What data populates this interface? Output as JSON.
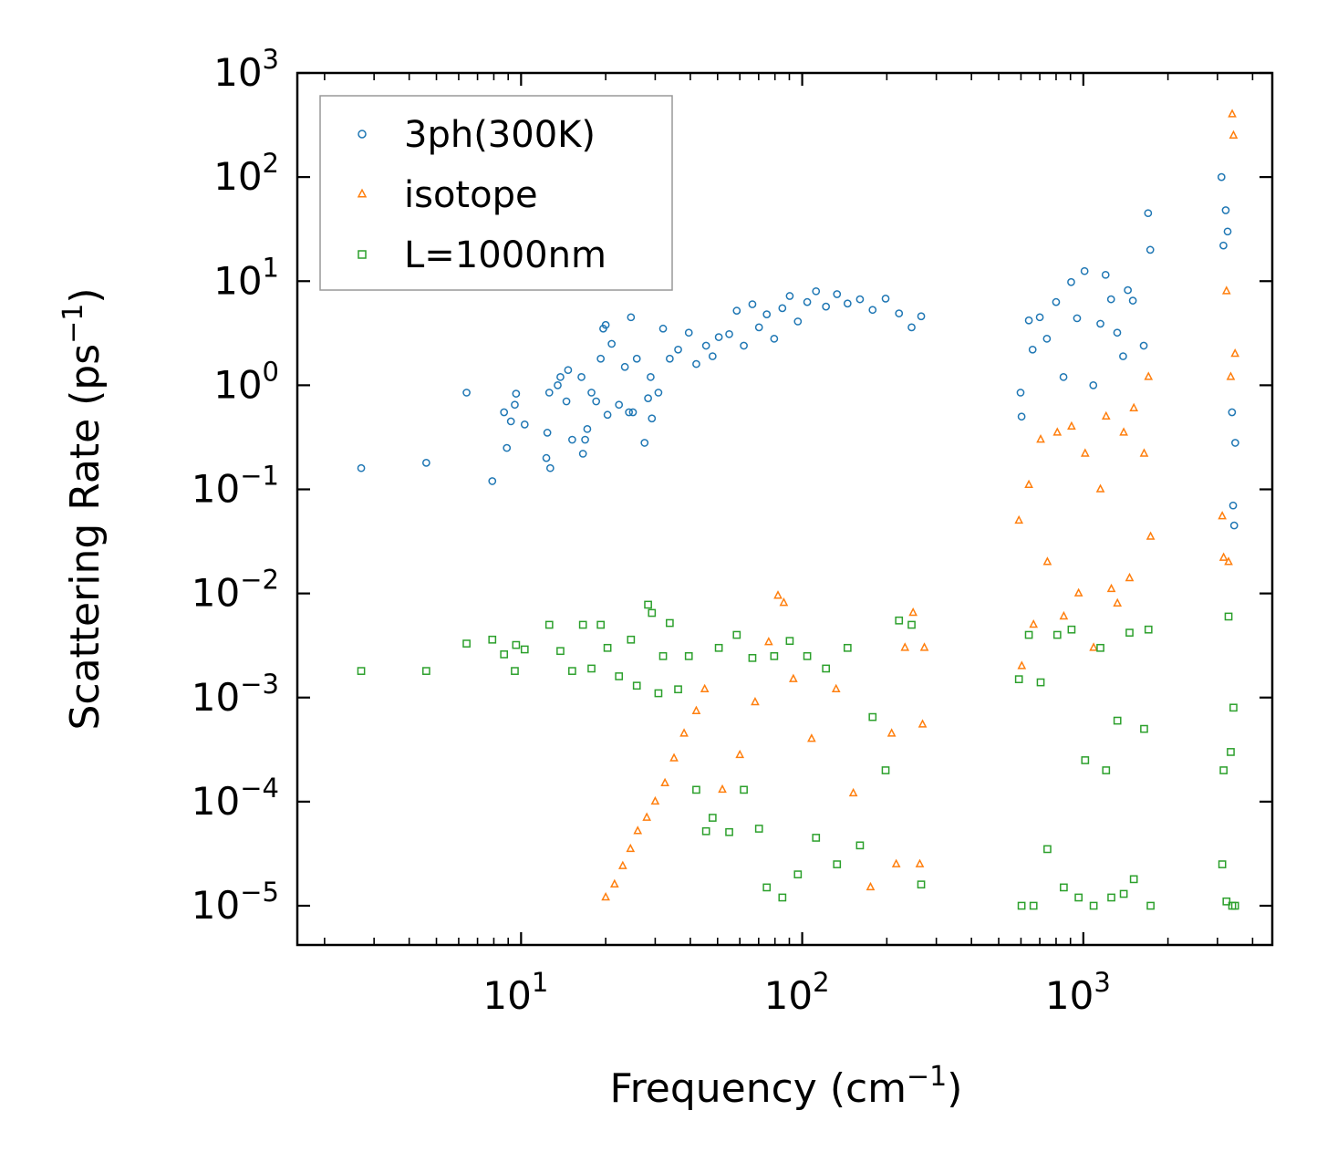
{
  "chart_data": {
    "type": "scatter",
    "title": "",
    "xlabel": "Frequency (cm",
    "xlabel_sup": "−1",
    "xlabel_tail": ")",
    "ylabel": "Scattering Rate (ps",
    "ylabel_sup": "−1",
    "ylabel_tail": ")",
    "xscale": "log",
    "yscale": "log",
    "xlim": [
      1.6,
      4700
    ],
    "ylim": [
      4.2e-06,
      1000
    ],
    "x_ticks": [
      {
        "value": 10,
        "base": "10",
        "exp": "1"
      },
      {
        "value": 100,
        "base": "10",
        "exp": "2"
      },
      {
        "value": 1000,
        "base": "10",
        "exp": "3"
      }
    ],
    "y_ticks": [
      {
        "value": 1e-05,
        "base": "10",
        "exp": "−5"
      },
      {
        "value": 0.0001,
        "base": "10",
        "exp": "−4"
      },
      {
        "value": 0.001,
        "base": "10",
        "exp": "−3"
      },
      {
        "value": 0.01,
        "base": "10",
        "exp": "−2"
      },
      {
        "value": 0.1,
        "base": "10",
        "exp": "−1"
      },
      {
        "value": 1,
        "base": "10",
        "exp": "0"
      },
      {
        "value": 10,
        "base": "10",
        "exp": "1"
      },
      {
        "value": 100,
        "base": "10",
        "exp": "2"
      },
      {
        "value": 1000,
        "base": "10",
        "exp": "3"
      }
    ],
    "legend_position": "top-left",
    "series": [
      {
        "name": "3ph(300K)",
        "color": "#1f77b4",
        "marker": "circle",
        "points": [
          [
            2.7,
            0.16
          ],
          [
            4.6,
            0.18
          ],
          [
            6.4,
            0.85
          ],
          [
            7.9,
            0.12
          ],
          [
            8.7,
            0.55
          ],
          [
            8.9,
            0.25
          ],
          [
            9.2,
            0.45
          ],
          [
            9.5,
            0.65
          ],
          [
            9.6,
            0.83
          ],
          [
            10.3,
            0.42
          ],
          [
            12.3,
            0.2
          ],
          [
            12.4,
            0.35
          ],
          [
            12.6,
            0.85
          ],
          [
            12.7,
            0.16
          ],
          [
            13.5,
            1.0
          ],
          [
            13.8,
            1.2
          ],
          [
            14.5,
            0.7
          ],
          [
            14.7,
            1.4
          ],
          [
            15.2,
            0.3
          ],
          [
            16.4,
            1.2
          ],
          [
            16.6,
            0.22
          ],
          [
            16.9,
            0.3
          ],
          [
            17.2,
            0.38
          ],
          [
            17.8,
            0.85
          ],
          [
            18.5,
            0.7
          ],
          [
            19.2,
            1.8
          ],
          [
            19.6,
            3.5
          ],
          [
            20.0,
            3.8
          ],
          [
            20.3,
            0.52
          ],
          [
            21.0,
            2.5
          ],
          [
            22.3,
            0.65
          ],
          [
            23.4,
            1.5
          ],
          [
            24.2,
            0.55
          ],
          [
            24.6,
            4.5
          ],
          [
            25.0,
            0.55
          ],
          [
            25.8,
            1.8
          ],
          [
            27.5,
            0.28
          ],
          [
            28.3,
            0.75
          ],
          [
            28.9,
            1.2
          ],
          [
            29.2,
            0.48
          ],
          [
            30.8,
            0.85
          ],
          [
            32.0,
            3.5
          ],
          [
            33.8,
            1.8
          ],
          [
            36.2,
            2.2
          ],
          [
            39.5,
            3.2
          ],
          [
            42.0,
            1.6
          ],
          [
            45.5,
            2.4
          ],
          [
            48.0,
            1.9
          ],
          [
            50.5,
            2.9
          ],
          [
            55.0,
            3.1
          ],
          [
            58.5,
            5.2
          ],
          [
            62.0,
            2.4
          ],
          [
            66.5,
            6.0
          ],
          [
            70.2,
            3.6
          ],
          [
            74.8,
            4.8
          ],
          [
            79.5,
            2.8
          ],
          [
            85.0,
            5.5
          ],
          [
            90.3,
            7.2
          ],
          [
            96.5,
            4.1
          ],
          [
            104.2,
            6.3
          ],
          [
            112.0,
            8.0
          ],
          [
            121.5,
            5.7
          ],
          [
            133.0,
            7.5
          ],
          [
            145.0,
            6.1
          ],
          [
            160.5,
            6.7
          ],
          [
            178.0,
            5.3
          ],
          [
            198.0,
            6.8
          ],
          [
            221.0,
            4.9
          ],
          [
            245.0,
            3.6
          ],
          [
            265.0,
            4.6
          ],
          [
            598.0,
            0.85
          ],
          [
            603.0,
            0.5
          ],
          [
            640.0,
            4.2
          ],
          [
            660.0,
            2.2
          ],
          [
            700.0,
            4.5
          ],
          [
            742.0,
            2.8
          ],
          [
            800.0,
            6.3
          ],
          [
            850.0,
            1.2
          ],
          [
            905.0,
            9.8
          ],
          [
            950.0,
            4.4
          ],
          [
            1010.0,
            12.5
          ],
          [
            1085.0,
            1.0
          ],
          [
            1150.0,
            3.9
          ],
          [
            1200.0,
            11.5
          ],
          [
            1255.0,
            6.7
          ],
          [
            1320.0,
            3.2
          ],
          [
            1385.0,
            1.9
          ],
          [
            1440.0,
            8.2
          ],
          [
            1500.0,
            6.5
          ],
          [
            1640.0,
            2.4
          ],
          [
            1700.0,
            45.0
          ],
          [
            1730.0,
            20.0
          ],
          [
            3100.0,
            100.0
          ],
          [
            3150.0,
            22.0
          ],
          [
            3210.0,
            48.0
          ],
          [
            3260.0,
            30.0
          ],
          [
            3380.0,
            0.55
          ],
          [
            3410.0,
            0.07
          ],
          [
            3440.0,
            0.045
          ],
          [
            3470.0,
            0.28
          ]
        ]
      },
      {
        "name": "isotope",
        "color": "#ff7f0e",
        "marker": "triangle",
        "points": [
          [
            20.0,
            1.2e-05
          ],
          [
            21.5,
            1.6e-05
          ],
          [
            23.0,
            2.4e-05
          ],
          [
            24.5,
            3.5e-05
          ],
          [
            26.0,
            5.2e-05
          ],
          [
            28.0,
            7e-05
          ],
          [
            30.0,
            0.0001
          ],
          [
            32.5,
            0.00015
          ],
          [
            35.0,
            0.00026
          ],
          [
            38.0,
            0.00045
          ],
          [
            42.0,
            0.00074
          ],
          [
            45.0,
            0.0012
          ],
          [
            52.0,
            0.00013
          ],
          [
            60.0,
            0.00028
          ],
          [
            68.0,
            0.0009
          ],
          [
            76.0,
            0.0034
          ],
          [
            82.0,
            0.0095
          ],
          [
            86.0,
            0.0081
          ],
          [
            93.0,
            0.0015
          ],
          [
            108.0,
            0.0004
          ],
          [
            132.0,
            0.0012
          ],
          [
            152.0,
            0.00012
          ],
          [
            175.0,
            1.5e-05
          ],
          [
            208.0,
            0.00045
          ],
          [
            216.0,
            2.5e-05
          ],
          [
            232.0,
            0.003
          ],
          [
            248.0,
            0.0065
          ],
          [
            262.0,
            2.5e-05
          ],
          [
            268.0,
            0.00055
          ],
          [
            272.0,
            0.003
          ],
          [
            590.0,
            0.05
          ],
          [
            604.0,
            0.002
          ],
          [
            640.0,
            0.11
          ],
          [
            665.0,
            0.005
          ],
          [
            705.0,
            0.3
          ],
          [
            745.0,
            0.02
          ],
          [
            808.0,
            0.35
          ],
          [
            852.0,
            0.006
          ],
          [
            908.0,
            0.4
          ],
          [
            962.0,
            0.01
          ],
          [
            1015.0,
            0.22
          ],
          [
            1088.0,
            0.003
          ],
          [
            1150.0,
            0.1
          ],
          [
            1205.0,
            0.5
          ],
          [
            1258.0,
            0.011
          ],
          [
            1322.0,
            0.008
          ],
          [
            1392.0,
            0.35
          ],
          [
            1460.0,
            0.014
          ],
          [
            1512.0,
            0.6
          ],
          [
            1645.0,
            0.22
          ],
          [
            1705.0,
            1.2
          ],
          [
            1735.0,
            0.035
          ],
          [
            3120.0,
            0.055
          ],
          [
            3155.0,
            0.022
          ],
          [
            3230.0,
            8.0
          ],
          [
            3285.0,
            0.02
          ],
          [
            3345.0,
            1.2
          ],
          [
            3385.0,
            400.0
          ],
          [
            3420.0,
            250.0
          ],
          [
            3465.0,
            2.0
          ]
        ]
      },
      {
        "name": "L=1000nm",
        "color": "#2ca02c",
        "marker": "square",
        "points": [
          [
            2.7,
            0.0018
          ],
          [
            4.6,
            0.0018
          ],
          [
            6.4,
            0.0033
          ],
          [
            7.9,
            0.0036
          ],
          [
            8.7,
            0.0026
          ],
          [
            9.5,
            0.0018
          ],
          [
            9.6,
            0.0032
          ],
          [
            10.3,
            0.0029
          ],
          [
            12.6,
            0.005
          ],
          [
            13.8,
            0.0028
          ],
          [
            15.2,
            0.0018
          ],
          [
            16.6,
            0.005
          ],
          [
            17.8,
            0.0019
          ],
          [
            19.2,
            0.005
          ],
          [
            20.3,
            0.003
          ],
          [
            22.3,
            0.0016
          ],
          [
            24.6,
            0.0036
          ],
          [
            25.8,
            0.0013
          ],
          [
            28.3,
            0.0078
          ],
          [
            29.2,
            0.0065
          ],
          [
            30.8,
            0.0011
          ],
          [
            32.0,
            0.0025
          ],
          [
            33.8,
            0.0052
          ],
          [
            36.2,
            0.0012
          ],
          [
            39.5,
            0.0025
          ],
          [
            42.0,
            0.00013
          ],
          [
            45.5,
            5.2e-05
          ],
          [
            48.0,
            7e-05
          ],
          [
            50.5,
            0.003
          ],
          [
            55.0,
            5.1e-05
          ],
          [
            58.5,
            0.004
          ],
          [
            62.0,
            0.00013
          ],
          [
            66.5,
            0.0024
          ],
          [
            70.2,
            5.5e-05
          ],
          [
            74.8,
            1.5e-05
          ],
          [
            79.5,
            0.0025
          ],
          [
            85.0,
            1.2e-05
          ],
          [
            90.3,
            0.0035
          ],
          [
            96.5,
            2e-05
          ],
          [
            104.2,
            0.0025
          ],
          [
            112.0,
            4.5e-05
          ],
          [
            121.5,
            0.0019
          ],
          [
            133.0,
            2.5e-05
          ],
          [
            145.0,
            0.003
          ],
          [
            160.5,
            3.8e-05
          ],
          [
            178.0,
            0.00065
          ],
          [
            198.0,
            0.0002
          ],
          [
            221.0,
            0.0055
          ],
          [
            245.0,
            0.005
          ],
          [
            265.0,
            1.6e-05
          ],
          [
            590.0,
            0.0015
          ],
          [
            603.0,
            1e-05
          ],
          [
            640.0,
            0.004
          ],
          [
            665.0,
            1e-05
          ],
          [
            705.0,
            0.0014
          ],
          [
            745.0,
            3.5e-05
          ],
          [
            808.0,
            0.004
          ],
          [
            852.0,
            1.5e-05
          ],
          [
            908.0,
            0.0045
          ],
          [
            962.0,
            1.2e-05
          ],
          [
            1015.0,
            0.00025
          ],
          [
            1088.0,
            1e-05
          ],
          [
            1150.0,
            0.003
          ],
          [
            1205.0,
            0.0002
          ],
          [
            1258.0,
            1.2e-05
          ],
          [
            1322.0,
            0.0006
          ],
          [
            1392.0,
            1.3e-05
          ],
          [
            1460.0,
            0.0042
          ],
          [
            1512.0,
            1.8e-05
          ],
          [
            1645.0,
            0.0005
          ],
          [
            1705.0,
            0.0045
          ],
          [
            1735.0,
            1e-05
          ],
          [
            3120.0,
            2.5e-05
          ],
          [
            3155.0,
            0.0002
          ],
          [
            3230.0,
            1.1e-05
          ],
          [
            3285.0,
            0.006
          ],
          [
            3345.0,
            0.0003
          ],
          [
            3385.0,
            1e-05
          ],
          [
            3420.0,
            0.0008
          ],
          [
            3465.0,
            1e-05
          ]
        ]
      }
    ]
  }
}
